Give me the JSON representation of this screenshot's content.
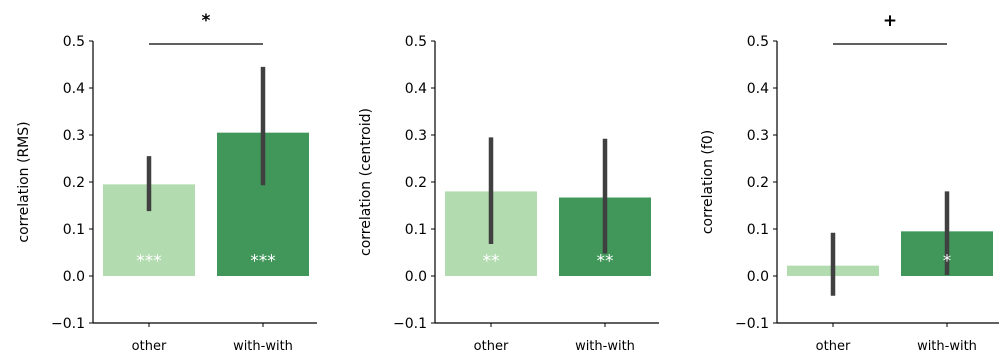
{
  "colors": {
    "bar_light": "#b3dbb0",
    "bar_dark": "#41975a",
    "error_bar": "#404040",
    "text": "#000000",
    "star_text": "#ffffff"
  },
  "chart_data": [
    {
      "type": "bar",
      "categories": [
        "other",
        "with-with"
      ],
      "values": [
        0.195,
        0.305
      ],
      "error_low": [
        0.138,
        0.193
      ],
      "error_high": [
        0.255,
        0.445
      ],
      "bar_labels": [
        "***",
        "***"
      ],
      "significance": "*",
      "title": "",
      "xlabel": "",
      "ylabel": "correlation (RMS)",
      "ylim": [
        -0.1,
        0.5
      ],
      "yticks": [
        -0.1,
        0.0,
        0.1,
        0.2,
        0.3,
        0.4,
        0.5
      ],
      "ytick_labels": [
        "−0.1",
        "0.0",
        "0.1",
        "0.2",
        "0.3",
        "0.4",
        "0.5"
      ],
      "grid": false
    },
    {
      "type": "bar",
      "categories": [
        "other",
        "with-with"
      ],
      "values": [
        0.18,
        0.167
      ],
      "error_low": [
        0.068,
        0.048
      ],
      "error_high": [
        0.295,
        0.292
      ],
      "bar_labels": [
        "**",
        "**"
      ],
      "significance": "",
      "title": "",
      "xlabel": "",
      "ylabel": "correlation (centroid)",
      "ylim": [
        -0.1,
        0.5
      ],
      "yticks": [
        -0.1,
        0.0,
        0.1,
        0.2,
        0.3,
        0.4,
        0.5
      ],
      "ytick_labels": [
        "−0.1",
        "0.0",
        "0.1",
        "0.2",
        "0.3",
        "0.4",
        "0.5"
      ],
      "grid": false
    },
    {
      "type": "bar",
      "categories": [
        "other",
        "with-with"
      ],
      "values": [
        0.022,
        0.095
      ],
      "error_low": [
        -0.042,
        0.002
      ],
      "error_high": [
        0.092,
        0.18
      ],
      "bar_labels": [
        "",
        "*"
      ],
      "significance": "+",
      "title": "",
      "xlabel": "",
      "ylabel": "correlation (f0)",
      "ylim": [
        -0.1,
        0.5
      ],
      "yticks": [
        -0.1,
        0.0,
        0.1,
        0.2,
        0.3,
        0.4,
        0.5
      ],
      "ytick_labels": [
        "−0.1",
        "0.0",
        "0.1",
        "0.2",
        "0.3",
        "0.4",
        "0.5"
      ],
      "grid": false
    }
  ]
}
